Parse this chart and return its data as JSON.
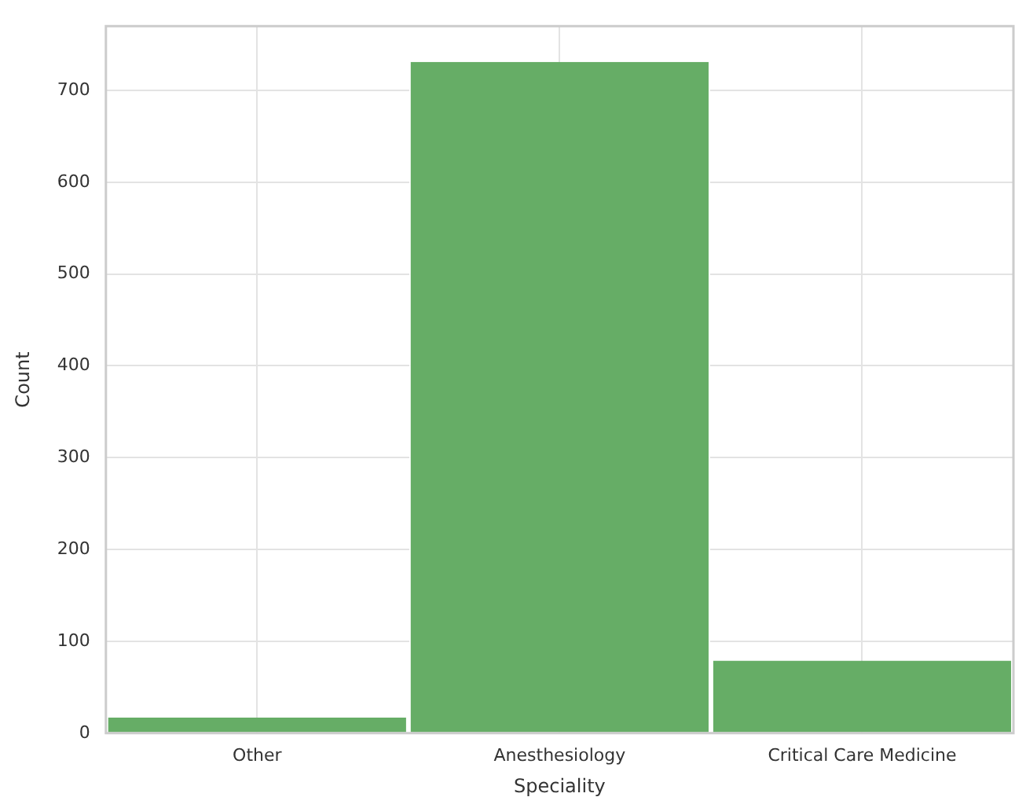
{
  "chart_data": {
    "type": "bar",
    "xlabel": "Speciality",
    "ylabel": "Count",
    "categories": [
      "Other",
      "Anesthesiology",
      "Critical Care Medicine"
    ],
    "values": [
      17,
      731,
      79
    ],
    "color": "#66ad66",
    "ylim": [
      0,
      770
    ],
    "yticks": [
      0,
      100,
      200,
      300,
      400,
      500,
      600,
      700
    ],
    "grid": true
  }
}
